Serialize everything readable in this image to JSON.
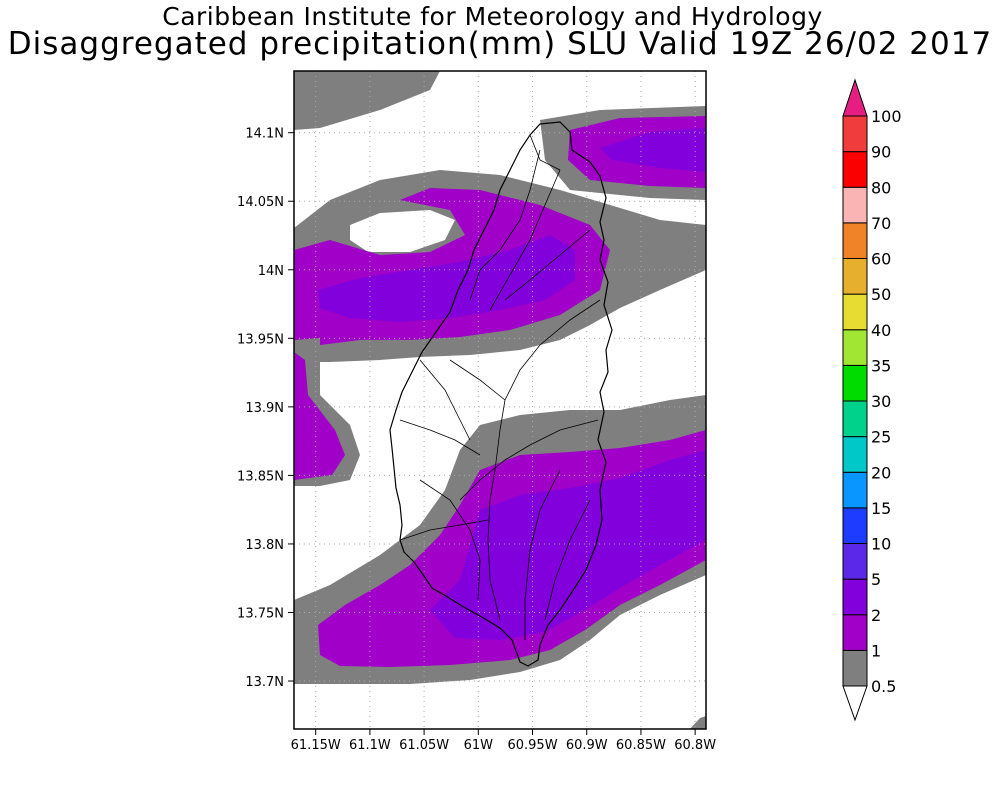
{
  "titles": {
    "line1": "Caribbean Institute for Meteorology and Hydrology",
    "line2": "Disaggregated precipitation(mm) SLU Valid 19Z 26/02 2017"
  },
  "map": {
    "lon_range": [
      -61.17,
      -60.79
    ],
    "lat_range": [
      13.665,
      14.145
    ],
    "lon_ticks": [
      {
        "value": -61.15,
        "label": "61.15W"
      },
      {
        "value": -61.1,
        "label": "61.1W"
      },
      {
        "value": -61.05,
        "label": "61.05W"
      },
      {
        "value": -61.0,
        "label": "61W"
      },
      {
        "value": -60.95,
        "label": "60.95W"
      },
      {
        "value": -60.9,
        "label": "60.9W"
      },
      {
        "value": -60.85,
        "label": "60.85W"
      },
      {
        "value": -60.8,
        "label": "60.8W"
      }
    ],
    "lat_ticks": [
      {
        "value": 14.1,
        "label": "14.1N"
      },
      {
        "value": 14.05,
        "label": "14.05N"
      },
      {
        "value": 14.0,
        "label": "14N"
      },
      {
        "value": 13.95,
        "label": "13.95N"
      },
      {
        "value": 13.9,
        "label": "13.9N"
      },
      {
        "value": 13.85,
        "label": "13.85N"
      },
      {
        "value": 13.8,
        "label": "13.8N"
      },
      {
        "value": 13.75,
        "label": "13.75N"
      },
      {
        "value": 13.7,
        "label": "13.7N"
      }
    ],
    "grid": true
  },
  "colorbar": {
    "levels": [
      {
        "label": "0.5",
        "color": "#7f7f7f"
      },
      {
        "label": "1",
        "color": "#a000c8"
      },
      {
        "label": "2",
        "color": "#8200dc"
      },
      {
        "label": "5",
        "color": "#5a28e6"
      },
      {
        "label": "10",
        "color": "#1e3cff"
      },
      {
        "label": "15",
        "color": "#0a96ff"
      },
      {
        "label": "20",
        "color": "#00c8c8"
      },
      {
        "label": "25",
        "color": "#00d28c"
      },
      {
        "label": "30",
        "color": "#00dc00"
      },
      {
        "label": "35",
        "color": "#a0e632"
      },
      {
        "label": "40",
        "color": "#e6dc32"
      },
      {
        "label": "50",
        "color": "#e6af2d"
      },
      {
        "label": "60",
        "color": "#f08228"
      },
      {
        "label": "70",
        "color": "#fab4b4"
      },
      {
        "label": "80",
        "color": "#fa0000"
      },
      {
        "label": "90",
        "color": "#f03c3c"
      },
      {
        "label": "100",
        "color": "#e61e82"
      }
    ],
    "below_color": "#ffffff",
    "above_color": "#e61e82"
  }
}
